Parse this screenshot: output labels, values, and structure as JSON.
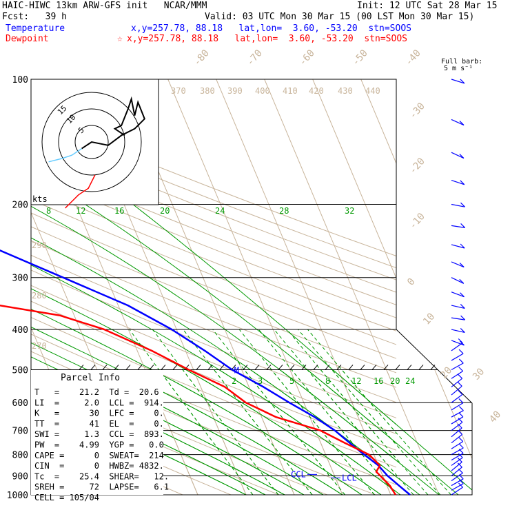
{
  "header": {
    "model_title": "HAIC-HIWC 13km ARW-GFS init   NCAR/MMM",
    "init": "Init: 12 UTC Sat 28 Mar 15",
    "fcst_label": "Fcst:   39 h",
    "valid": "Valid: 03 UTC Mon 30 Mar 15 (00 LST Mon 30 Mar 15)",
    "temp_label": "Temperature",
    "temp_info": "x,y=257.78, 88.18   lat,lon=  3.60, -53.20  stn=SOOS",
    "dew_label": "Dewpoint",
    "dew_info": "x,y=257.78, 88.18   lat,lon=  3.60, -53.20  stn=SOOS",
    "temp_color": "#0000ff",
    "dew_color": "#ff0000"
  },
  "barb_legend": {
    "line1": "Full barb:",
    "line2": "5 m s⁻¹"
  },
  "hodograph": {
    "ring_labels": [
      "15",
      "10",
      "5"
    ],
    "units": "kts"
  },
  "parcel_info": {
    "title": "Parcel Info",
    "rows": [
      "T   =    21.2  Td =  20.6",
      "LI  =     2.0  LCL =  914.",
      "K   =      30  LFC =    0.",
      "TT  =      41  EL  =    0.",
      "SWI =     1.3  CCL =  893.",
      "PW  =    4.99  YGP =   0.0",
      "CAPE =      0  SWEAT=  214",
      "CIN  =      0  HWBZ= 4832.",
      "Tc  =    25.4  SHEAR=   12.",
      "SREH =     72  LAPSE=   6.1",
      "CELL = 105/04"
    ]
  },
  "annotations": {
    "lfc_marker": "M",
    "ccl": "CCL",
    "lcl": "LCL"
  },
  "chart_data": {
    "type": "line",
    "ylabel": "",
    "pressure_levels": [
      100,
      200,
      300,
      400,
      500,
      600,
      700,
      800,
      900,
      1000
    ],
    "pressure_range": [
      100,
      1000
    ],
    "isotherm_labels": [
      "-80",
      "-70",
      "-60",
      "-50",
      "-40",
      "-30",
      "-20",
      "-10",
      "0",
      "10",
      "20",
      "30",
      "40"
    ],
    "dry_adiabat_labels": [
      "370",
      "380",
      "390",
      "400",
      "410",
      "420",
      "430",
      "440",
      "290",
      "280",
      "270"
    ],
    "mixing_ratio_labels_upper": [
      "8",
      "12",
      "16",
      "20",
      "24",
      "28",
      "32"
    ],
    "mixing_ratio_labels_lower": [
      "2",
      "3",
      "5",
      "8",
      "12",
      "16",
      "20",
      "24"
    ],
    "series": [
      {
        "name": "Temperature",
        "points": [
          [
            100,
            -83
          ],
          [
            120,
            -72
          ],
          [
            150,
            -66
          ],
          [
            180,
            -59
          ],
          [
            200,
            -54
          ],
          [
            250,
            -42
          ],
          [
            300,
            -29
          ],
          [
            350,
            -18
          ],
          [
            400,
            -11
          ],
          [
            450,
            -6
          ],
          [
            500,
            -2
          ],
          [
            550,
            3
          ],
          [
            600,
            7
          ],
          [
            650,
            11
          ],
          [
            700,
            14
          ],
          [
            750,
            16
          ],
          [
            800,
            18
          ],
          [
            850,
            20
          ],
          [
            900,
            21
          ],
          [
            950,
            22.5
          ],
          [
            1000,
            24
          ]
        ]
      },
      {
        "name": "Dewpoint",
        "points": [
          [
            100,
            -100
          ],
          [
            150,
            -95
          ],
          [
            190,
            -86
          ],
          [
            200,
            -88
          ],
          [
            250,
            -83
          ],
          [
            300,
            -76
          ],
          [
            330,
            -57
          ],
          [
            370,
            -33
          ],
          [
            400,
            -25
          ],
          [
            450,
            -17
          ],
          [
            500,
            -11
          ],
          [
            550,
            -5
          ],
          [
            600,
            -2
          ],
          [
            650,
            3
          ],
          [
            700,
            11
          ],
          [
            750,
            15
          ],
          [
            800,
            19
          ],
          [
            850,
            20.3
          ],
          [
            880,
            19
          ],
          [
            900,
            19.5
          ],
          [
            950,
            20.6
          ],
          [
            1000,
            21
          ]
        ]
      }
    ],
    "hodograph_trace": [
      [
        -3,
        -2
      ],
      [
        0,
        0
      ],
      [
        5,
        -1
      ],
      [
        9,
        2
      ],
      [
        13,
        4
      ],
      [
        16,
        7
      ],
      [
        14,
        12
      ],
      [
        13,
        8
      ],
      [
        12,
        13
      ],
      [
        11,
        10
      ],
      [
        9,
        5
      ],
      [
        7,
        4
      ],
      [
        10,
        2
      ]
    ],
    "hodograph_trace_2": [
      [
        -3,
        -2
      ],
      [
        -6,
        -4
      ],
      [
        -9,
        -5
      ],
      [
        -13,
        -6
      ]
    ],
    "hodograph_trace_3": [
      [
        -8,
        -20
      ],
      [
        -4,
        -16
      ],
      [
        -1,
        -14
      ],
      [
        1,
        -10
      ]
    ],
    "grid": true
  }
}
